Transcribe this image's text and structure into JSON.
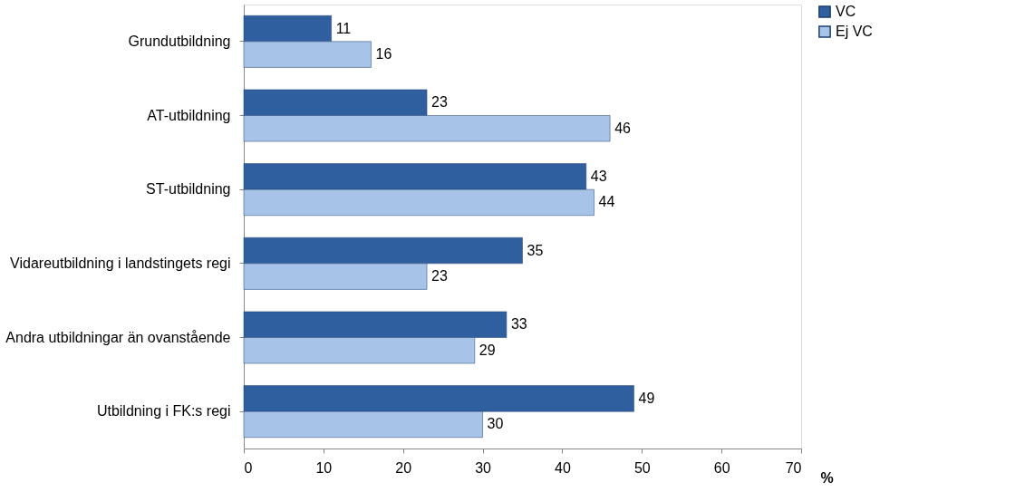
{
  "chart_data": {
    "type": "bar",
    "orientation": "horizontal",
    "categories": [
      "Grundutbildning",
      "AT-utbildning",
      "ST-utbildning",
      "Vidareutbildning i landstingets regi",
      "Andra utbildningar än ovanstående",
      "Utbildning i FK:s regi"
    ],
    "series": [
      {
        "name": "VC",
        "color": "#2f5f9e",
        "values": [
          11,
          23,
          43,
          35,
          33,
          49
        ]
      },
      {
        "name": "Ej VC",
        "color": "#a7c3e8",
        "values": [
          16,
          46,
          44,
          23,
          29,
          30
        ]
      }
    ],
    "xlabel": "%",
    "xlim": [
      0,
      70
    ],
    "xticks": [
      0,
      10,
      20,
      30,
      40,
      50,
      60,
      70
    ],
    "data_labels": true,
    "legend": "right",
    "grid": false
  }
}
